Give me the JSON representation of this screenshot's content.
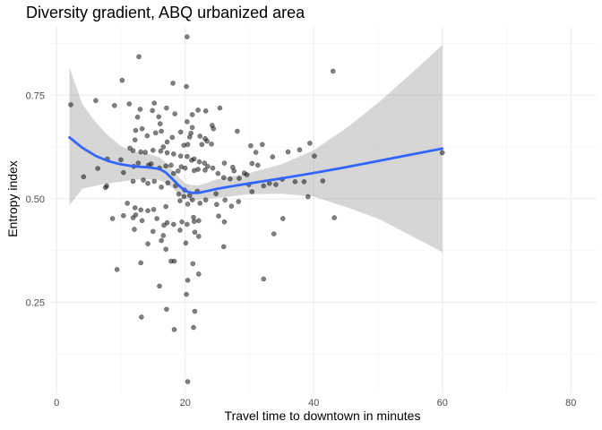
{
  "chart_data": {
    "type": "scatter",
    "title": "Diversity gradient, ABQ urbanized area",
    "xlabel": "Travel time to downtown in minutes",
    "ylabel": "Entropy index",
    "xlim": [
      -1,
      84
    ],
    "ylim": [
      0.03,
      0.915
    ],
    "x_ticks": [
      0,
      20,
      40,
      60,
      80
    ],
    "y_ticks": [
      0.25,
      0.5,
      0.75
    ],
    "y_tick_labels": [
      "0.25",
      "0.50",
      "0.75"
    ],
    "grid": true,
    "points": [
      [
        20.3,
        0.891
      ],
      [
        12.8,
        0.843
      ],
      [
        43.0,
        0.808
      ],
      [
        10.2,
        0.786
      ],
      [
        18.1,
        0.779
      ],
      [
        20.2,
        0.771
      ],
      [
        2.2,
        0.727
      ],
      [
        6.1,
        0.737
      ],
      [
        9.0,
        0.725
      ],
      [
        15.2,
        0.731
      ],
      [
        11.3,
        0.729
      ],
      [
        13.0,
        0.716
      ],
      [
        14.9,
        0.713
      ],
      [
        17.1,
        0.719
      ],
      [
        22.0,
        0.714
      ],
      [
        23.2,
        0.712
      ],
      [
        25.4,
        0.719
      ],
      [
        21.1,
        0.703
      ],
      [
        15.9,
        0.698
      ],
      [
        12.6,
        0.697
      ],
      [
        18.4,
        0.705
      ],
      [
        16.1,
        0.681
      ],
      [
        20.3,
        0.686
      ],
      [
        12.3,
        0.665
      ],
      [
        13.3,
        0.669
      ],
      [
        15.4,
        0.659
      ],
      [
        16.3,
        0.663
      ],
      [
        19.3,
        0.661
      ],
      [
        21.1,
        0.672
      ],
      [
        24.2,
        0.677
      ],
      [
        24.4,
        0.669
      ],
      [
        28.1,
        0.663
      ],
      [
        20.7,
        0.649
      ],
      [
        20.9,
        0.658
      ],
      [
        22.3,
        0.651
      ],
      [
        23.1,
        0.645
      ],
      [
        18.0,
        0.648
      ],
      [
        14.1,
        0.652
      ],
      [
        12.2,
        0.642
      ],
      [
        17.2,
        0.637
      ],
      [
        19.8,
        0.629
      ],
      [
        16.6,
        0.625
      ],
      [
        20.4,
        0.631
      ],
      [
        22.6,
        0.631
      ],
      [
        23.4,
        0.639
      ],
      [
        24.1,
        0.632
      ],
      [
        30.2,
        0.628
      ],
      [
        32.0,
        0.631
      ],
      [
        31.0,
        0.612
      ],
      [
        33.6,
        0.601
      ],
      [
        36.0,
        0.613
      ],
      [
        37.8,
        0.618
      ],
      [
        39.4,
        0.634
      ],
      [
        40.1,
        0.603
      ],
      [
        11.4,
        0.622
      ],
      [
        11.9,
        0.616
      ],
      [
        13.1,
        0.613
      ],
      [
        13.8,
        0.612
      ],
      [
        15.0,
        0.617
      ],
      [
        16.2,
        0.615
      ],
      [
        17.2,
        0.611
      ],
      [
        18.2,
        0.608
      ],
      [
        19.3,
        0.603
      ],
      [
        20.3,
        0.602
      ],
      [
        21.0,
        0.593
      ],
      [
        21.4,
        0.596
      ],
      [
        22.2,
        0.589
      ],
      [
        23.0,
        0.586
      ],
      [
        23.5,
        0.578
      ],
      [
        26.1,
        0.586
      ],
      [
        27.4,
        0.576
      ],
      [
        27.6,
        0.567
      ],
      [
        29.2,
        0.562
      ],
      [
        29.6,
        0.558
      ],
      [
        30.4,
        0.585
      ],
      [
        31.3,
        0.581
      ],
      [
        6.4,
        0.573
      ],
      [
        7.9,
        0.596
      ],
      [
        10.0,
        0.594
      ],
      [
        10.4,
        0.563
      ],
      [
        12.0,
        0.578
      ],
      [
        12.7,
        0.586
      ],
      [
        14.3,
        0.581
      ],
      [
        14.7,
        0.584
      ],
      [
        16.0,
        0.574
      ],
      [
        17.0,
        0.579
      ],
      [
        17.8,
        0.581
      ],
      [
        18.2,
        0.561
      ],
      [
        18.9,
        0.567
      ],
      [
        19.4,
        0.577
      ],
      [
        20.0,
        0.574
      ],
      [
        21.4,
        0.568
      ],
      [
        22.0,
        0.571
      ],
      [
        23.1,
        0.569
      ],
      [
        24.3,
        0.574
      ],
      [
        25.1,
        0.561
      ],
      [
        26.0,
        0.551
      ],
      [
        27.0,
        0.548
      ],
      [
        28.4,
        0.549
      ],
      [
        29.9,
        0.534
      ],
      [
        33.1,
        0.537
      ],
      [
        34.1,
        0.534
      ],
      [
        35.1,
        0.547
      ],
      [
        37.1,
        0.541
      ],
      [
        38.5,
        0.541
      ],
      [
        4.2,
        0.553
      ],
      [
        7.8,
        0.531
      ],
      [
        7.6,
        0.527
      ],
      [
        11.9,
        0.542
      ],
      [
        13.5,
        0.545
      ],
      [
        14.2,
        0.537
      ],
      [
        15.2,
        0.542
      ],
      [
        16.3,
        0.528
      ],
      [
        17.3,
        0.538
      ],
      [
        18.5,
        0.531
      ],
      [
        19.0,
        0.511
      ],
      [
        19.8,
        0.505
      ],
      [
        19.9,
        0.521
      ],
      [
        20.7,
        0.508
      ],
      [
        21.1,
        0.497
      ],
      [
        21.9,
        0.518
      ],
      [
        23.2,
        0.497
      ],
      [
        24.8,
        0.512
      ],
      [
        26.2,
        0.497
      ],
      [
        30.4,
        0.517
      ],
      [
        32.2,
        0.531
      ],
      [
        39.1,
        0.505
      ],
      [
        41.4,
        0.543
      ],
      [
        60.0,
        0.611
      ],
      [
        11.0,
        0.489
      ],
      [
        12.2,
        0.478
      ],
      [
        13.1,
        0.473
      ],
      [
        14.2,
        0.471
      ],
      [
        15.1,
        0.474
      ],
      [
        17.0,
        0.481
      ],
      [
        19.2,
        0.495
      ],
      [
        20.4,
        0.487
      ],
      [
        22.3,
        0.489
      ],
      [
        24.9,
        0.486
      ],
      [
        27.2,
        0.482
      ],
      [
        28.3,
        0.493
      ],
      [
        8.7,
        0.452
      ],
      [
        10.4,
        0.459
      ],
      [
        11.9,
        0.454
      ],
      [
        12.3,
        0.461
      ],
      [
        13.3,
        0.447
      ],
      [
        15.6,
        0.452
      ],
      [
        16.7,
        0.436
      ],
      [
        17.2,
        0.442
      ],
      [
        18.2,
        0.438
      ],
      [
        19.5,
        0.444
      ],
      [
        20.3,
        0.438
      ],
      [
        21.3,
        0.455
      ],
      [
        22.1,
        0.447
      ],
      [
        25.2,
        0.458
      ],
      [
        26.1,
        0.444
      ],
      [
        35.2,
        0.452
      ],
      [
        43.2,
        0.454
      ],
      [
        21.4,
        0.445
      ],
      [
        12.1,
        0.426
      ],
      [
        15.0,
        0.421
      ],
      [
        16.6,
        0.411
      ],
      [
        19.2,
        0.424
      ],
      [
        21.5,
        0.419
      ],
      [
        22.1,
        0.409
      ],
      [
        33.8,
        0.415
      ],
      [
        14.2,
        0.391
      ],
      [
        16.3,
        0.399
      ],
      [
        17.0,
        0.378
      ],
      [
        20.1,
        0.393
      ],
      [
        26.0,
        0.384
      ],
      [
        17.8,
        0.349
      ],
      [
        18.3,
        0.349
      ],
      [
        21.2,
        0.343
      ],
      [
        13.1,
        0.345
      ],
      [
        9.4,
        0.329
      ],
      [
        22.1,
        0.318
      ],
      [
        20.4,
        0.303
      ],
      [
        32.2,
        0.306
      ],
      [
        16.0,
        0.289
      ],
      [
        20.2,
        0.269
      ],
      [
        17.1,
        0.233
      ],
      [
        21.5,
        0.228
      ],
      [
        13.2,
        0.214
      ],
      [
        18.3,
        0.184
      ],
      [
        21.3,
        0.189
      ],
      [
        20.4,
        0.058
      ]
    ],
    "smooth_line": [
      [
        2,
        0.648
      ],
      [
        4,
        0.623
      ],
      [
        6,
        0.604
      ],
      [
        8,
        0.591
      ],
      [
        10,
        0.583
      ],
      [
        12,
        0.578
      ],
      [
        14,
        0.576
      ],
      [
        16,
        0.572
      ],
      [
        17,
        0.563
      ],
      [
        18,
        0.548
      ],
      [
        19,
        0.532
      ],
      [
        20,
        0.519
      ],
      [
        21,
        0.514
      ],
      [
        22,
        0.514
      ],
      [
        23,
        0.517
      ],
      [
        25,
        0.524
      ],
      [
        28,
        0.532
      ],
      [
        30,
        0.537
      ],
      [
        35,
        0.549
      ],
      [
        40,
        0.562
      ],
      [
        45,
        0.576
      ],
      [
        50,
        0.591
      ],
      [
        55,
        0.606
      ],
      [
        60,
        0.621
      ]
    ],
    "confidence_band": [
      [
        2,
        0.817,
        0.484
      ],
      [
        4,
        0.729,
        0.524
      ],
      [
        6,
        0.686,
        0.531
      ],
      [
        8,
        0.653,
        0.537
      ],
      [
        10,
        0.627,
        0.541
      ],
      [
        12,
        0.613,
        0.546
      ],
      [
        14,
        0.609,
        0.547
      ],
      [
        16,
        0.6,
        0.545
      ],
      [
        17,
        0.587,
        0.538
      ],
      [
        18,
        0.569,
        0.526
      ],
      [
        19,
        0.552,
        0.511
      ],
      [
        20,
        0.537,
        0.5
      ],
      [
        21,
        0.533,
        0.496
      ],
      [
        22,
        0.532,
        0.497
      ],
      [
        23,
        0.536,
        0.499
      ],
      [
        25,
        0.547,
        0.502
      ],
      [
        28,
        0.556,
        0.507
      ],
      [
        30,
        0.562,
        0.511
      ],
      [
        35,
        0.583,
        0.512
      ],
      [
        40,
        0.617,
        0.505
      ],
      [
        45,
        0.67,
        0.48
      ],
      [
        50,
        0.731,
        0.452
      ],
      [
        55,
        0.8,
        0.412
      ],
      [
        60,
        0.871,
        0.371
      ]
    ],
    "colors": {
      "points": "#000000",
      "smooth_line": "#3366ff",
      "confidence_band": "#999999",
      "background": "#ffffff",
      "grid": "#ebebeb"
    }
  }
}
